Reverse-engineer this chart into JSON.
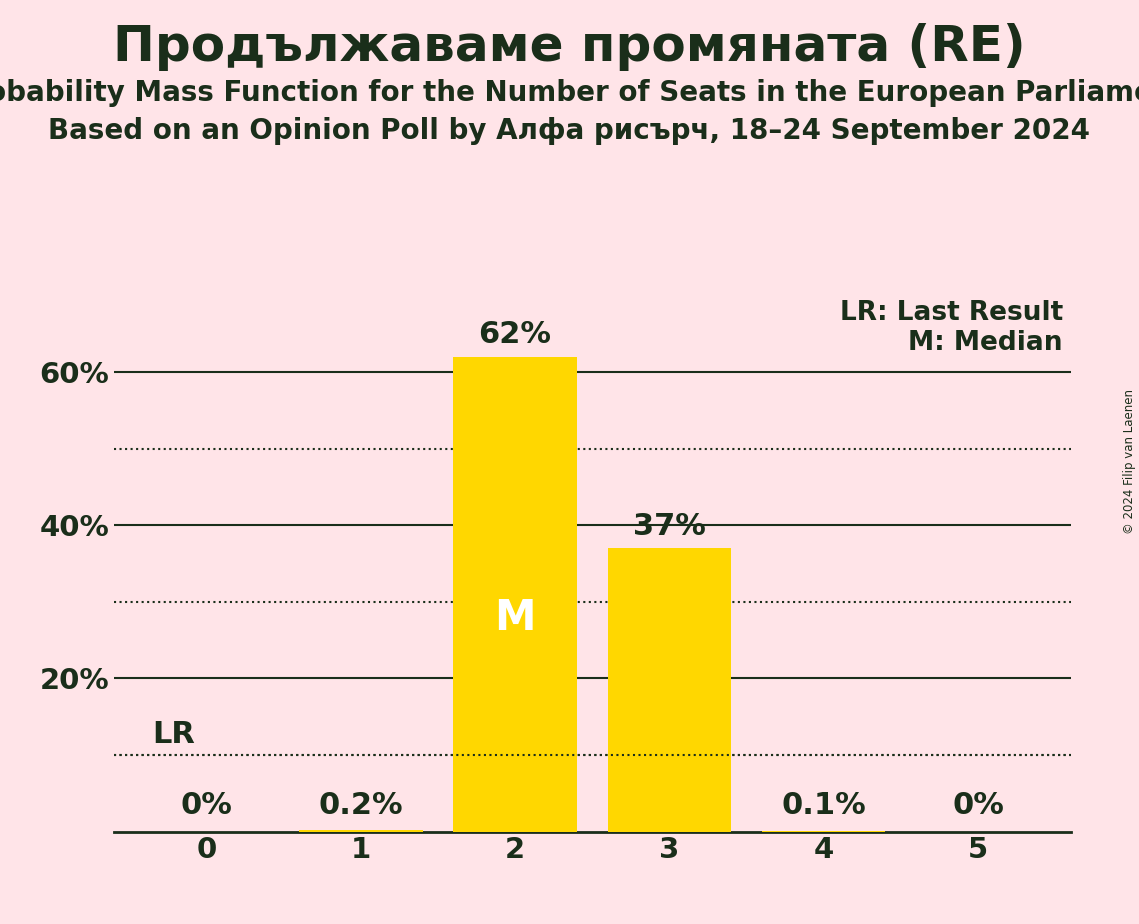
{
  "title": "Продължаваме промяната (RE)",
  "subtitle1": "Probability Mass Function for the Number of Seats in the European Parliament",
  "subtitle2": "Based on an Opinion Poll by Алфа рисърч, 18–24 September 2024",
  "copyright": "© 2024 Filip van Laenen",
  "categories": [
    0,
    1,
    2,
    3,
    4,
    5
  ],
  "values": [
    0.0,
    0.002,
    0.62,
    0.37,
    0.001,
    0.0
  ],
  "value_labels": [
    "0%",
    "0.2%",
    "62%",
    "37%",
    "0.1%",
    "0%"
  ],
  "bar_color": "#FFD700",
  "background_color": "#FFE4E8",
  "text_color": "#1a2e1a",
  "title_fontsize": 36,
  "subtitle_fontsize": 20,
  "label_fontsize": 19,
  "tick_fontsize": 21,
  "annotation_fontsize": 22,
  "median_bar": 2,
  "lr_value": 0.1,
  "ylim": [
    0,
    0.7
  ],
  "solid_yticks": [
    0.2,
    0.4,
    0.6
  ],
  "dotted_yticks": [
    0.1,
    0.3,
    0.5
  ],
  "ytick_labels_pos": [
    0.2,
    0.4,
    0.6
  ],
  "ytick_labels": [
    "20%",
    "40%",
    "60%"
  ],
  "legend_lr": "LR: Last Result",
  "legend_m": "M: Median"
}
